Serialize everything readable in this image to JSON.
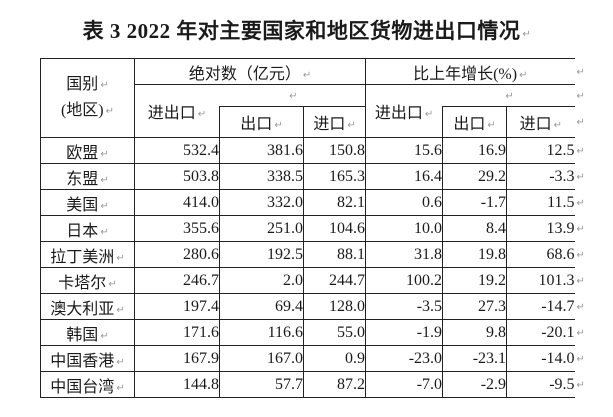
{
  "title": "表 3  2022 年对主要国家和地区货物进出口情况",
  "marks": {
    "pilcrow": "↵"
  },
  "colors": {
    "background": "#ffffff",
    "text": "#1a1a1a",
    "border": "#222222",
    "pilcrow": "#999999"
  },
  "table": {
    "corner_header": {
      "line1": "国别",
      "line2": "(地区)"
    },
    "groups": [
      {
        "label": "绝对数（亿元）",
        "sub_total": "进出口",
        "sub_export": "出口",
        "sub_import": "进口"
      },
      {
        "label": "比上年增长(%)",
        "sub_total": "进出口",
        "sub_export": "出口",
        "sub_import": "进口"
      }
    ],
    "rows": [
      {
        "name": "欧盟",
        "values": [
          "532.4",
          "381.6",
          "150.8",
          "15.6",
          "16.9",
          "12.5"
        ]
      },
      {
        "name": "东盟",
        "values": [
          "503.8",
          "338.5",
          "165.3",
          "16.4",
          "29.2",
          "-3.3"
        ]
      },
      {
        "name": "美国",
        "values": [
          "414.0",
          "332.0",
          "82.1",
          "0.6",
          "-1.7",
          "11.5"
        ]
      },
      {
        "name": "日本",
        "values": [
          "355.6",
          "251.0",
          "104.6",
          "10.0",
          "8.4",
          "13.9"
        ]
      },
      {
        "name": "拉丁美洲",
        "values": [
          "280.6",
          "192.5",
          "88.1",
          "31.8",
          "19.8",
          "68.6"
        ]
      },
      {
        "name": "卡塔尔",
        "values": [
          "246.7",
          "2.0",
          "244.7",
          "100.2",
          "19.2",
          "101.3"
        ]
      },
      {
        "name": "澳大利亚",
        "values": [
          "197.4",
          "69.4",
          "128.0",
          "-3.5",
          "27.3",
          "-14.7"
        ]
      },
      {
        "name": "韩国",
        "values": [
          "171.6",
          "116.6",
          "55.0",
          "-1.9",
          "9.8",
          "-20.1"
        ]
      },
      {
        "name": "中国香港",
        "values": [
          "167.9",
          "167.0",
          "0.9",
          "-23.0",
          "-23.1",
          "-14.0"
        ]
      },
      {
        "name": "中国台湾",
        "values": [
          "144.8",
          "57.7",
          "87.2",
          "-7.0",
          "-2.9",
          "-9.5"
        ]
      }
    ]
  }
}
